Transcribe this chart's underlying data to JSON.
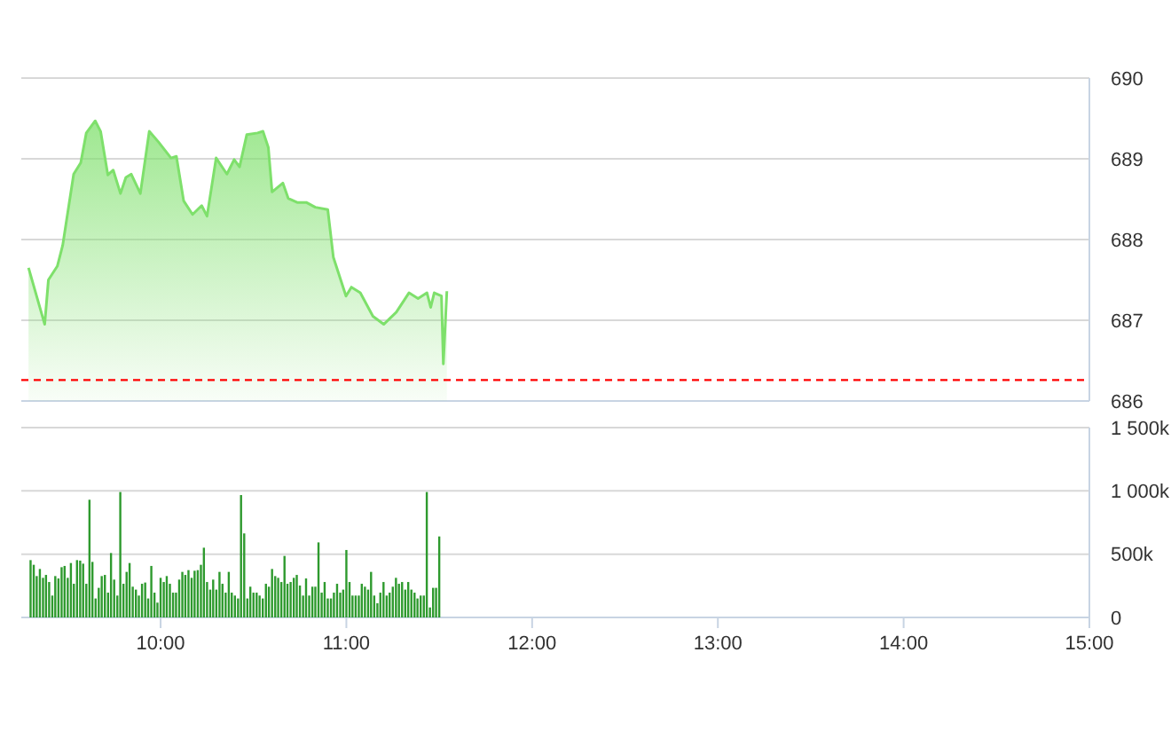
{
  "chart_data": [
    {
      "type": "area",
      "xlim": [
        9.25,
        15
      ],
      "ylim": [
        686,
        690
      ],
      "yticks": [
        686,
        687,
        688,
        689,
        690
      ],
      "grid": "y",
      "tick_labels": "y",
      "ref_lines": [
        {
          "axis": "y",
          "value": 686.26,
          "color": "#ff0000",
          "line_style": "dashed"
        }
      ],
      "series": [
        {
          "color": "#7ee06b",
          "x": [
            9.289,
            9.376,
            9.396,
            9.444,
            9.473,
            9.532,
            9.57,
            9.6,
            9.648,
            9.677,
            9.716,
            9.745,
            9.784,
            9.813,
            9.842,
            9.891,
            9.939,
            9.988,
            10.056,
            10.085,
            10.124,
            10.172,
            10.221,
            10.25,
            10.299,
            10.357,
            10.396,
            10.425,
            10.464,
            10.522,
            10.551,
            10.58,
            10.6,
            10.658,
            10.687,
            10.735,
            10.784,
            10.833,
            10.9,
            10.93,
            10.998,
            11.027,
            11.075,
            11.143,
            11.201,
            11.269,
            11.337,
            11.386,
            11.434,
            11.454,
            11.473,
            11.512,
            11.522,
            11.541
          ],
          "values": [
            687.65,
            686.95,
            687.5,
            687.67,
            687.93,
            688.81,
            688.95,
            689.32,
            689.47,
            689.34,
            688.8,
            688.86,
            688.57,
            688.77,
            688.81,
            688.57,
            689.34,
            689.21,
            689.01,
            689.03,
            688.48,
            688.31,
            688.42,
            688.29,
            689.01,
            688.81,
            688.99,
            688.9,
            689.3,
            689.32,
            689.34,
            689.14,
            688.59,
            688.7,
            688.51,
            688.46,
            688.46,
            688.4,
            688.37,
            687.78,
            687.3,
            687.41,
            687.34,
            687.05,
            686.95,
            687.1,
            687.34,
            687.27,
            687.34,
            687.16,
            687.34,
            687.3,
            686.46,
            687.36
          ]
        }
      ]
    },
    {
      "type": "bar",
      "xlim": [
        9.25,
        15
      ],
      "xticks": [
        {
          "value": 10,
          "label": "10:00"
        },
        {
          "value": 11,
          "label": "11:00"
        },
        {
          "value": 12,
          "label": "12:00"
        },
        {
          "value": 13,
          "label": "13:00"
        },
        {
          "value": 14,
          "label": "14:00"
        },
        {
          "value": 15,
          "label": "15:00"
        }
      ],
      "ylim": [
        0,
        1500
      ],
      "yticks": [
        0,
        {
          "value": 500,
          "label": "500k"
        },
        {
          "value": 1000,
          "label": "1 000k"
        },
        {
          "value": 1500,
          "label": "1 500k"
        }
      ],
      "grid": "y",
      "series": [
        {
          "color": "#2e9a2e",
          "x": [
            9.3,
            9.317,
            9.333,
            9.35,
            9.367,
            9.383,
            9.4,
            9.417,
            9.433,
            9.45,
            9.467,
            9.483,
            9.5,
            9.517,
            9.533,
            9.55,
            9.567,
            9.583,
            9.6,
            9.617,
            9.633,
            9.65,
            9.667,
            9.683,
            9.7,
            9.717,
            9.733,
            9.75,
            9.767,
            9.783,
            9.8,
            9.817,
            9.833,
            9.85,
            9.867,
            9.883,
            9.9,
            9.917,
            9.933,
            9.95,
            9.967,
            9.983,
            10,
            10.017,
            10.033,
            10.05,
            10.067,
            10.083,
            10.1,
            10.117,
            10.133,
            10.15,
            10.167,
            10.183,
            10.2,
            10.217,
            10.233,
            10.25,
            10.267,
            10.283,
            10.3,
            10.317,
            10.333,
            10.35,
            10.367,
            10.383,
            10.4,
            10.417,
            10.433,
            10.45,
            10.467,
            10.483,
            10.5,
            10.517,
            10.533,
            10.55,
            10.567,
            10.583,
            10.6,
            10.617,
            10.633,
            10.65,
            10.667,
            10.683,
            10.7,
            10.717,
            10.733,
            10.75,
            10.767,
            10.783,
            10.8,
            10.817,
            10.833,
            10.85,
            10.867,
            10.883,
            10.9,
            10.917,
            10.933,
            10.95,
            10.967,
            10.983,
            11,
            11.017,
            11.033,
            11.05,
            11.067,
            11.083,
            11.1,
            11.117,
            11.133,
            11.15,
            11.167,
            11.183,
            11.2,
            11.217,
            11.233,
            11.25,
            11.267,
            11.283,
            11.3,
            11.317,
            11.333,
            11.35,
            11.367,
            11.383,
            11.4,
            11.417,
            11.433,
            11.45,
            11.467,
            11.483,
            11.5
          ],
          "values": [
            453,
            416,
            327,
            383,
            313,
            336,
            280,
            173,
            327,
            308,
            397,
            407,
            313,
            430,
            266,
            453,
            449,
            425,
            266,
            930,
            439,
            150,
            234,
            327,
            336,
            196,
            509,
            299,
            173,
            991,
            266,
            360,
            430,
            243,
            220,
            173,
            266,
            276,
            150,
            407,
            196,
            117,
            313,
            280,
            327,
            266,
            196,
            196,
            299,
            360,
            336,
            374,
            313,
            369,
            374,
            416,
            551,
            280,
            220,
            299,
            220,
            360,
            266,
            196,
            360,
            196,
            173,
            150,
            967,
            664,
            150,
            243,
            196,
            196,
            173,
            150,
            266,
            243,
            383,
            327,
            313,
            280,
            486,
            266,
            280,
            313,
            336,
            252,
            173,
            308,
            173,
            243,
            243,
            593,
            196,
            280,
            150,
            150,
            196,
            266,
            196,
            220,
            533,
            280,
            173,
            173,
            173,
            266,
            243,
            220,
            360,
            173,
            112,
            196,
            280,
            173,
            196,
            243,
            313,
            266,
            280,
            220,
            280,
            220,
            196,
            150,
            173,
            173,
            991,
            79,
            234,
            234,
            640
          ]
        }
      ]
    }
  ]
}
